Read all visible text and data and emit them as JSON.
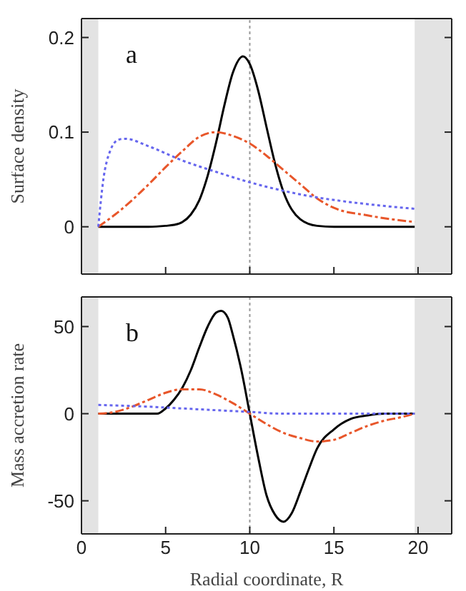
{
  "chart_data": [
    {
      "type": "line",
      "ylabel": "Surface density",
      "xlim": [
        0,
        22
      ],
      "xticks": [
        0,
        5,
        10,
        15,
        20
      ],
      "ylim": [
        -0.05,
        0.22
      ],
      "yticks": [
        0,
        0.1,
        0.2
      ],
      "tick_labels": "y",
      "annotations": [
        "a"
      ],
      "bands": [
        {
          "axis": "x",
          "from": 0,
          "to": 1,
          "color": "#e3e3e3"
        },
        {
          "axis": "x",
          "from": 19.8,
          "to": 22,
          "color": "#e3e3e3"
        }
      ],
      "ref_lines": [
        {
          "axis": "x",
          "value": 10,
          "color": "#999999",
          "line_style": "dotted"
        }
      ],
      "series": [
        {
          "color": "#000000",
          "line_style": "solid",
          "x": [
            1,
            4,
            5,
            5.5,
            6,
            6.5,
            7,
            7.5,
            8,
            8.5,
            9,
            9.6,
            10,
            10.5,
            11,
            11.5,
            12,
            12.5,
            13,
            14,
            15,
            19.8
          ],
          "values": [
            0,
            0,
            0.001,
            0.002,
            0.005,
            0.013,
            0.028,
            0.054,
            0.089,
            0.129,
            0.163,
            0.18,
            0.172,
            0.144,
            0.105,
            0.067,
            0.037,
            0.018,
            0.008,
            0.001,
            0,
            0
          ]
        },
        {
          "color": "#e8562a",
          "line_style": "dashed",
          "x": [
            1,
            2,
            3,
            4,
            5,
            6,
            7,
            8,
            9,
            10,
            11,
            12,
            13,
            14,
            15,
            17,
            19.8
          ],
          "values": [
            0,
            0.013,
            0.028,
            0.045,
            0.063,
            0.08,
            0.095,
            0.1,
            0.096,
            0.088,
            0.075,
            0.06,
            0.045,
            0.03,
            0.02,
            0.012,
            0.005
          ]
        },
        {
          "color": "#6666ee",
          "line_style": "dotted",
          "x": [
            1,
            1.3,
            1.7,
            2.2,
            2.6,
            4,
            6,
            8,
            10,
            12,
            14,
            16,
            18,
            19.8
          ],
          "values": [
            0,
            0.05,
            0.08,
            0.092,
            0.093,
            0.085,
            0.07,
            0.058,
            0.047,
            0.038,
            0.031,
            0.026,
            0.022,
            0.019
          ]
        }
      ]
    },
    {
      "type": "line",
      "xlabel": "Radial coordinate, R",
      "ylabel": "Mass accretion rate",
      "xlim": [
        0,
        22
      ],
      "xticks": [
        0,
        5,
        10,
        15,
        20
      ],
      "ylim": [
        -69,
        67
      ],
      "yticks": [
        -50,
        0,
        50
      ],
      "annotations": [
        "b"
      ],
      "bands": [
        {
          "axis": "x",
          "from": 0,
          "to": 1,
          "color": "#e3e3e3"
        },
        {
          "axis": "x",
          "from": 19.8,
          "to": 22,
          "color": "#e3e3e3"
        }
      ],
      "ref_lines": [
        {
          "axis": "x",
          "value": 10,
          "color": "#999999",
          "line_style": "dotted"
        }
      ],
      "series": [
        {
          "color": "#000000",
          "line_style": "solid",
          "x": [
            1,
            4.5,
            5,
            5.5,
            6,
            6.5,
            7,
            7.5,
            8,
            8.3,
            8.7,
            9,
            9.5,
            10,
            10.5,
            11,
            11.5,
            12,
            12.5,
            13,
            13.5,
            14,
            15,
            16,
            17,
            18,
            19.8
          ],
          "values": [
            0,
            0,
            3,
            8,
            15,
            25,
            38,
            50,
            58,
            59,
            55,
            45,
            25,
            0,
            -25,
            -47,
            -58,
            -62,
            -57,
            -45,
            -32,
            -20,
            -9,
            -3,
            -1,
            0,
            0
          ]
        },
        {
          "color": "#e8562a",
          "line_style": "dashed",
          "x": [
            1,
            2,
            3,
            4,
            5,
            6,
            7,
            8,
            9,
            10,
            11,
            12,
            13,
            14,
            15,
            16,
            17,
            18,
            19,
            19.8
          ],
          "values": [
            0,
            1,
            4,
            8,
            12,
            14,
            14,
            11,
            6,
            0,
            -6,
            -11,
            -14,
            -16,
            -15,
            -11,
            -7,
            -4,
            -2,
            0
          ]
        },
        {
          "color": "#6666ee",
          "line_style": "dotted",
          "x": [
            1,
            4,
            6,
            8,
            10,
            12,
            15,
            19.8
          ],
          "values": [
            5,
            4,
            3,
            2,
            1,
            0,
            0,
            0
          ]
        }
      ]
    }
  ]
}
